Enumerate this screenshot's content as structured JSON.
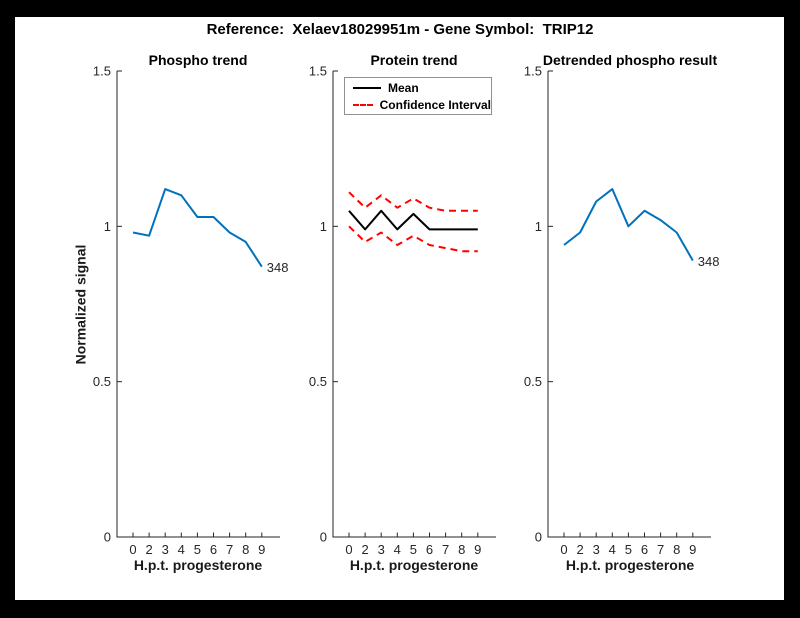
{
  "figure_title": "Reference:  Xelaev18029951m - Gene Symbol:  TRIP12",
  "colors": {
    "background": "#000000",
    "figure_background": "#ffffff",
    "blue": "#0072BD",
    "red": "#ff0000",
    "black": "#000000",
    "axis": "#262626",
    "legend_border": "#919191"
  },
  "chart_data": [
    {
      "type": "line",
      "title": "Phospho trend",
      "xlabel": "H.p.t. progesterone",
      "ylabel": "Normalized signal",
      "ylim": [
        0,
        1.5
      ],
      "grid": false,
      "yticks": [
        {
          "value": 0,
          "label": "0"
        },
        {
          "value": 0.5,
          "label": "0.5"
        },
        {
          "value": 1,
          "label": "1"
        },
        {
          "value": 1.5,
          "label": "1.5"
        }
      ],
      "x_categories": [
        "0",
        "2",
        "3",
        "4",
        "5",
        "6",
        "7",
        "8",
        "9"
      ],
      "annotation": "348",
      "series": [
        {
          "name": "phospho-signal",
          "color_key": "blue",
          "dash": "solid",
          "values": [
            0.98,
            0.97,
            1.12,
            1.1,
            1.03,
            1.03,
            0.98,
            0.95,
            0.87
          ]
        }
      ]
    },
    {
      "type": "line",
      "title": "Protein trend",
      "xlabel": "H.p.t. progesterone",
      "ylabel": "",
      "ylim": [
        0,
        1.5
      ],
      "grid": false,
      "legend_position": "top-left",
      "yticks": [
        {
          "value": 0,
          "label": "0"
        },
        {
          "value": 0.5,
          "label": "0.5"
        },
        {
          "value": 1,
          "label": "1"
        },
        {
          "value": 1.5,
          "label": "1.5"
        }
      ],
      "x_categories": [
        "0",
        "2",
        "3",
        "4",
        "5",
        "6",
        "7",
        "8",
        "9"
      ],
      "legend": [
        {
          "label": "Mean",
          "color_key": "black",
          "dash": "solid"
        },
        {
          "label": "Confidence Interval",
          "color_key": "red",
          "dash": "dashed"
        }
      ],
      "series": [
        {
          "name": "ci-upper",
          "color_key": "red",
          "dash": "dashed",
          "values": [
            1.11,
            1.06,
            1.1,
            1.06,
            1.09,
            1.06,
            1.05,
            1.05,
            1.05
          ]
        },
        {
          "name": "ci-lower",
          "color_key": "red",
          "dash": "dashed",
          "values": [
            1.0,
            0.95,
            0.98,
            0.94,
            0.97,
            0.94,
            0.93,
            0.92,
            0.92
          ]
        },
        {
          "name": "mean",
          "color_key": "black",
          "dash": "solid",
          "values": [
            1.05,
            0.99,
            1.05,
            0.99,
            1.04,
            0.99,
            0.99,
            0.99,
            0.99
          ]
        }
      ]
    },
    {
      "type": "line",
      "title": "Detrended phospho result",
      "xlabel": "H.p.t. progesterone",
      "ylabel": "",
      "ylim": [
        0,
        1.5
      ],
      "grid": false,
      "yticks": [
        {
          "value": 0,
          "label": "0"
        },
        {
          "value": 0.5,
          "label": "0.5"
        },
        {
          "value": 1,
          "label": "1"
        },
        {
          "value": 1.5,
          "label": "1.5"
        }
      ],
      "x_categories": [
        "0",
        "2",
        "3",
        "4",
        "5",
        "6",
        "7",
        "8",
        "9"
      ],
      "annotation": "348",
      "series": [
        {
          "name": "detrended-phospho-signal",
          "color_key": "blue",
          "dash": "solid",
          "values": [
            0.94,
            0.98,
            1.08,
            1.12,
            1.0,
            1.05,
            1.02,
            0.98,
            0.89
          ]
        }
      ]
    }
  ]
}
